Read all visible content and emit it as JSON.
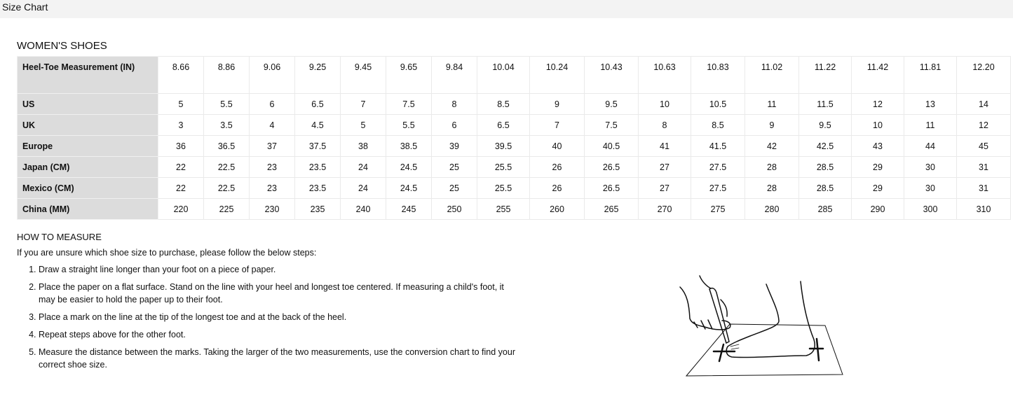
{
  "header": {
    "title": "Size Chart"
  },
  "section_title": "WOMEN'S SHOES",
  "table": {
    "rows": [
      {
        "label": "Heel-Toe Measurement (IN)",
        "values": [
          "8.66",
          "8.86",
          "9.06",
          "9.25",
          "9.45",
          "9.65",
          "9.84",
          "10.04",
          "10.24",
          "10.43",
          "10.63",
          "10.83",
          "11.02",
          "11.22",
          "11.42",
          "11.81",
          "12.20"
        ]
      },
      {
        "label": "US",
        "values": [
          "5",
          "5.5",
          "6",
          "6.5",
          "7",
          "7.5",
          "8",
          "8.5",
          "9",
          "9.5",
          "10",
          "10.5",
          "11",
          "11.5",
          "12",
          "13",
          "14"
        ]
      },
      {
        "label": "UK",
        "values": [
          "3",
          "3.5",
          "4",
          "4.5",
          "5",
          "5.5",
          "6",
          "6.5",
          "7",
          "7.5",
          "8",
          "8.5",
          "9",
          "9.5",
          "10",
          "11",
          "12"
        ]
      },
      {
        "label": "Europe",
        "values": [
          "36",
          "36.5",
          "37",
          "37.5",
          "38",
          "38.5",
          "39",
          "39.5",
          "40",
          "40.5",
          "41",
          "41.5",
          "42",
          "42.5",
          "43",
          "44",
          "45"
        ]
      },
      {
        "label": "Japan (CM)",
        "values": [
          "22",
          "22.5",
          "23",
          "23.5",
          "24",
          "24.5",
          "25",
          "25.5",
          "26",
          "26.5",
          "27",
          "27.5",
          "28",
          "28.5",
          "29",
          "30",
          "31"
        ]
      },
      {
        "label": "Mexico (CM)",
        "values": [
          "22",
          "22.5",
          "23",
          "23.5",
          "24",
          "24.5",
          "25",
          "25.5",
          "26",
          "26.5",
          "27",
          "27.5",
          "28",
          "28.5",
          "29",
          "30",
          "31"
        ]
      },
      {
        "label": "China (MM)",
        "values": [
          "220",
          "225",
          "230",
          "235",
          "240",
          "245",
          "250",
          "255",
          "260",
          "265",
          "270",
          "275",
          "280",
          "285",
          "290",
          "300",
          "310"
        ]
      }
    ]
  },
  "how_to": {
    "title": "HOW TO MEASURE",
    "intro": "If you are unsure which shoe size to purchase, please follow the below steps:",
    "steps": [
      "Draw a straight line longer than your foot on a piece of paper.",
      "Place the paper on a flat surface. Stand on the line with your heel and longest toe centered. If measuring a child's foot, it may be easier to hold the paper up to their foot.",
      "Place a mark on the line at the tip of the longest toe and at the back of the heel.",
      "Repeat steps above for the other foot.",
      "Measure the distance between the marks. Taking the larger of the two measurements, use the conversion chart to find your correct shoe size."
    ]
  },
  "illustration": {
    "icon": "foot-measuring-illustration"
  }
}
